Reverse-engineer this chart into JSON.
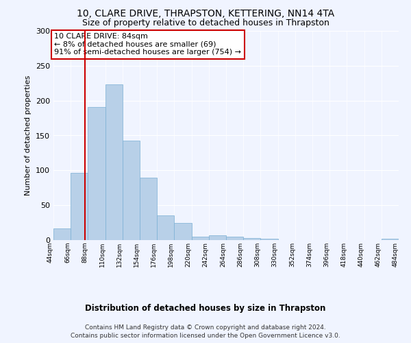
{
  "title1": "10, CLARE DRIVE, THRAPSTON, KETTERING, NN14 4TA",
  "title2": "Size of property relative to detached houses in Thrapston",
  "xlabel": "Distribution of detached houses by size in Thrapston",
  "ylabel": "Number of detached properties",
  "bar_color": "#b8d0e8",
  "bar_edge_color": "#7aafd4",
  "annotation_box_color": "#cc0000",
  "property_line_color": "#cc0000",
  "annotation_text": "10 CLARE DRIVE: 84sqm\n← 8% of detached houses are smaller (69)\n91% of semi-detached houses are larger (754) →",
  "property_size": 84,
  "bin_edges": [
    44,
    66,
    88,
    110,
    132,
    154,
    176,
    198,
    220,
    242,
    264,
    286,
    308,
    330,
    352,
    374,
    396,
    418,
    440,
    462,
    484
  ],
  "bar_heights": [
    17,
    96,
    191,
    223,
    143,
    90,
    35,
    25,
    5,
    7,
    5,
    3,
    2,
    0,
    0,
    0,
    0,
    0,
    0,
    2
  ],
  "ylim": [
    0,
    300
  ],
  "yticks": [
    0,
    50,
    100,
    150,
    200,
    250,
    300
  ],
  "footnote1": "Contains HM Land Registry data © Crown copyright and database right 2024.",
  "footnote2": "Contains public sector information licensed under the Open Government Licence v3.0.",
  "background_color": "#f0f4ff",
  "plot_bg_color": "#f0f4ff"
}
